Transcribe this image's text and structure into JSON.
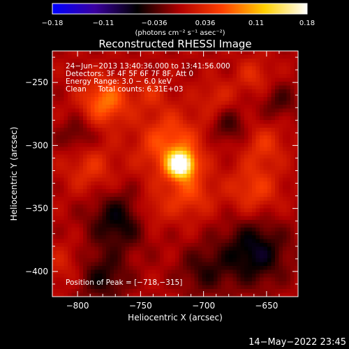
{
  "colorbar": {
    "ticks": [
      "−0.18",
      "−0.11",
      "−0.036",
      "0.036",
      "0.11",
      "0.18"
    ],
    "unit_label": "(photons cm⁻² s⁻¹ asec⁻²)"
  },
  "chart_data": {
    "type": "heatmap",
    "title": "Reconstructed RHESSI Image",
    "xlabel": "Heliocentric X (arcsec)",
    "ylabel": "Heliocentric Y (arcsec)",
    "xlim": [
      -820,
      -625
    ],
    "ylim": [
      -420,
      -225
    ],
    "x_ticks": [
      -800,
      -750,
      -700,
      -650
    ],
    "y_ticks": [
      -250,
      -300,
      -350,
      -400
    ],
    "x_tick_labels": [
      "−800",
      "−750",
      "−700",
      "−650"
    ],
    "y_tick_labels": [
      "−250",
      "−300",
      "−350",
      "−400"
    ],
    "color_range": [
      -0.18,
      0.18
    ],
    "colormap_stops": [
      "#0000ff",
      "#3a00a0",
      "#000000",
      "#b00000",
      "#ff4000",
      "#ffd000",
      "#ffffff"
    ],
    "info_lines": [
      "24−Jun−2013 13:40:36.000 to 13:41:56.000",
      "Detectors: 3F 4F 5F 6F 7F 8F, Att 0",
      "Energy Range: 3.0 − 6.0 keV",
      "Clean     Total counts: 6.31E+03"
    ],
    "peak_label": "Position of Peak = [−718,−315]",
    "peak": {
      "x": -718,
      "y": -315,
      "value": 0.18
    },
    "sources": [
      {
        "x": -718,
        "y": -315,
        "sigma": 7,
        "amp": 0.18
      },
      {
        "x": -726,
        "y": -300,
        "sigma": 18,
        "amp": 0.07
      },
      {
        "x": -712,
        "y": -338,
        "sigma": 14,
        "amp": 0.05
      },
      {
        "x": -778,
        "y": -265,
        "sigma": 13,
        "amp": 0.08
      },
      {
        "x": -790,
        "y": -318,
        "sigma": 14,
        "amp": 0.04
      },
      {
        "x": -660,
        "y": -335,
        "sigma": 14,
        "amp": 0.05
      },
      {
        "x": -652,
        "y": -300,
        "sigma": 12,
        "amp": 0.04
      },
      {
        "x": -742,
        "y": -258,
        "sigma": 10,
        "amp": 0.03
      },
      {
        "x": -690,
        "y": -262,
        "sigma": 10,
        "amp": 0.03
      },
      {
        "x": -660,
        "y": -245,
        "sigma": 10,
        "amp": 0.035
      },
      {
        "x": -742,
        "y": -352,
        "sigma": 10,
        "amp": 0.03
      },
      {
        "x": -812,
        "y": -395,
        "sigma": 12,
        "amp": 0.025
      },
      {
        "x": -768,
        "y": -360,
        "sigma": 16,
        "amp": -0.06
      },
      {
        "x": -660,
        "y": -385,
        "sigma": 18,
        "amp": -0.07
      },
      {
        "x": -680,
        "y": -285,
        "sigma": 10,
        "amp": -0.04
      },
      {
        "x": -800,
        "y": -292,
        "sigma": 10,
        "amp": -0.035
      },
      {
        "x": -700,
        "y": -400,
        "sigma": 14,
        "amp": -0.04
      },
      {
        "x": -780,
        "y": -405,
        "sigma": 14,
        "amp": -0.05
      },
      {
        "x": -640,
        "y": -265,
        "sigma": 10,
        "amp": -0.035
      }
    ]
  },
  "timestamp": "14−May−2022 23:45"
}
